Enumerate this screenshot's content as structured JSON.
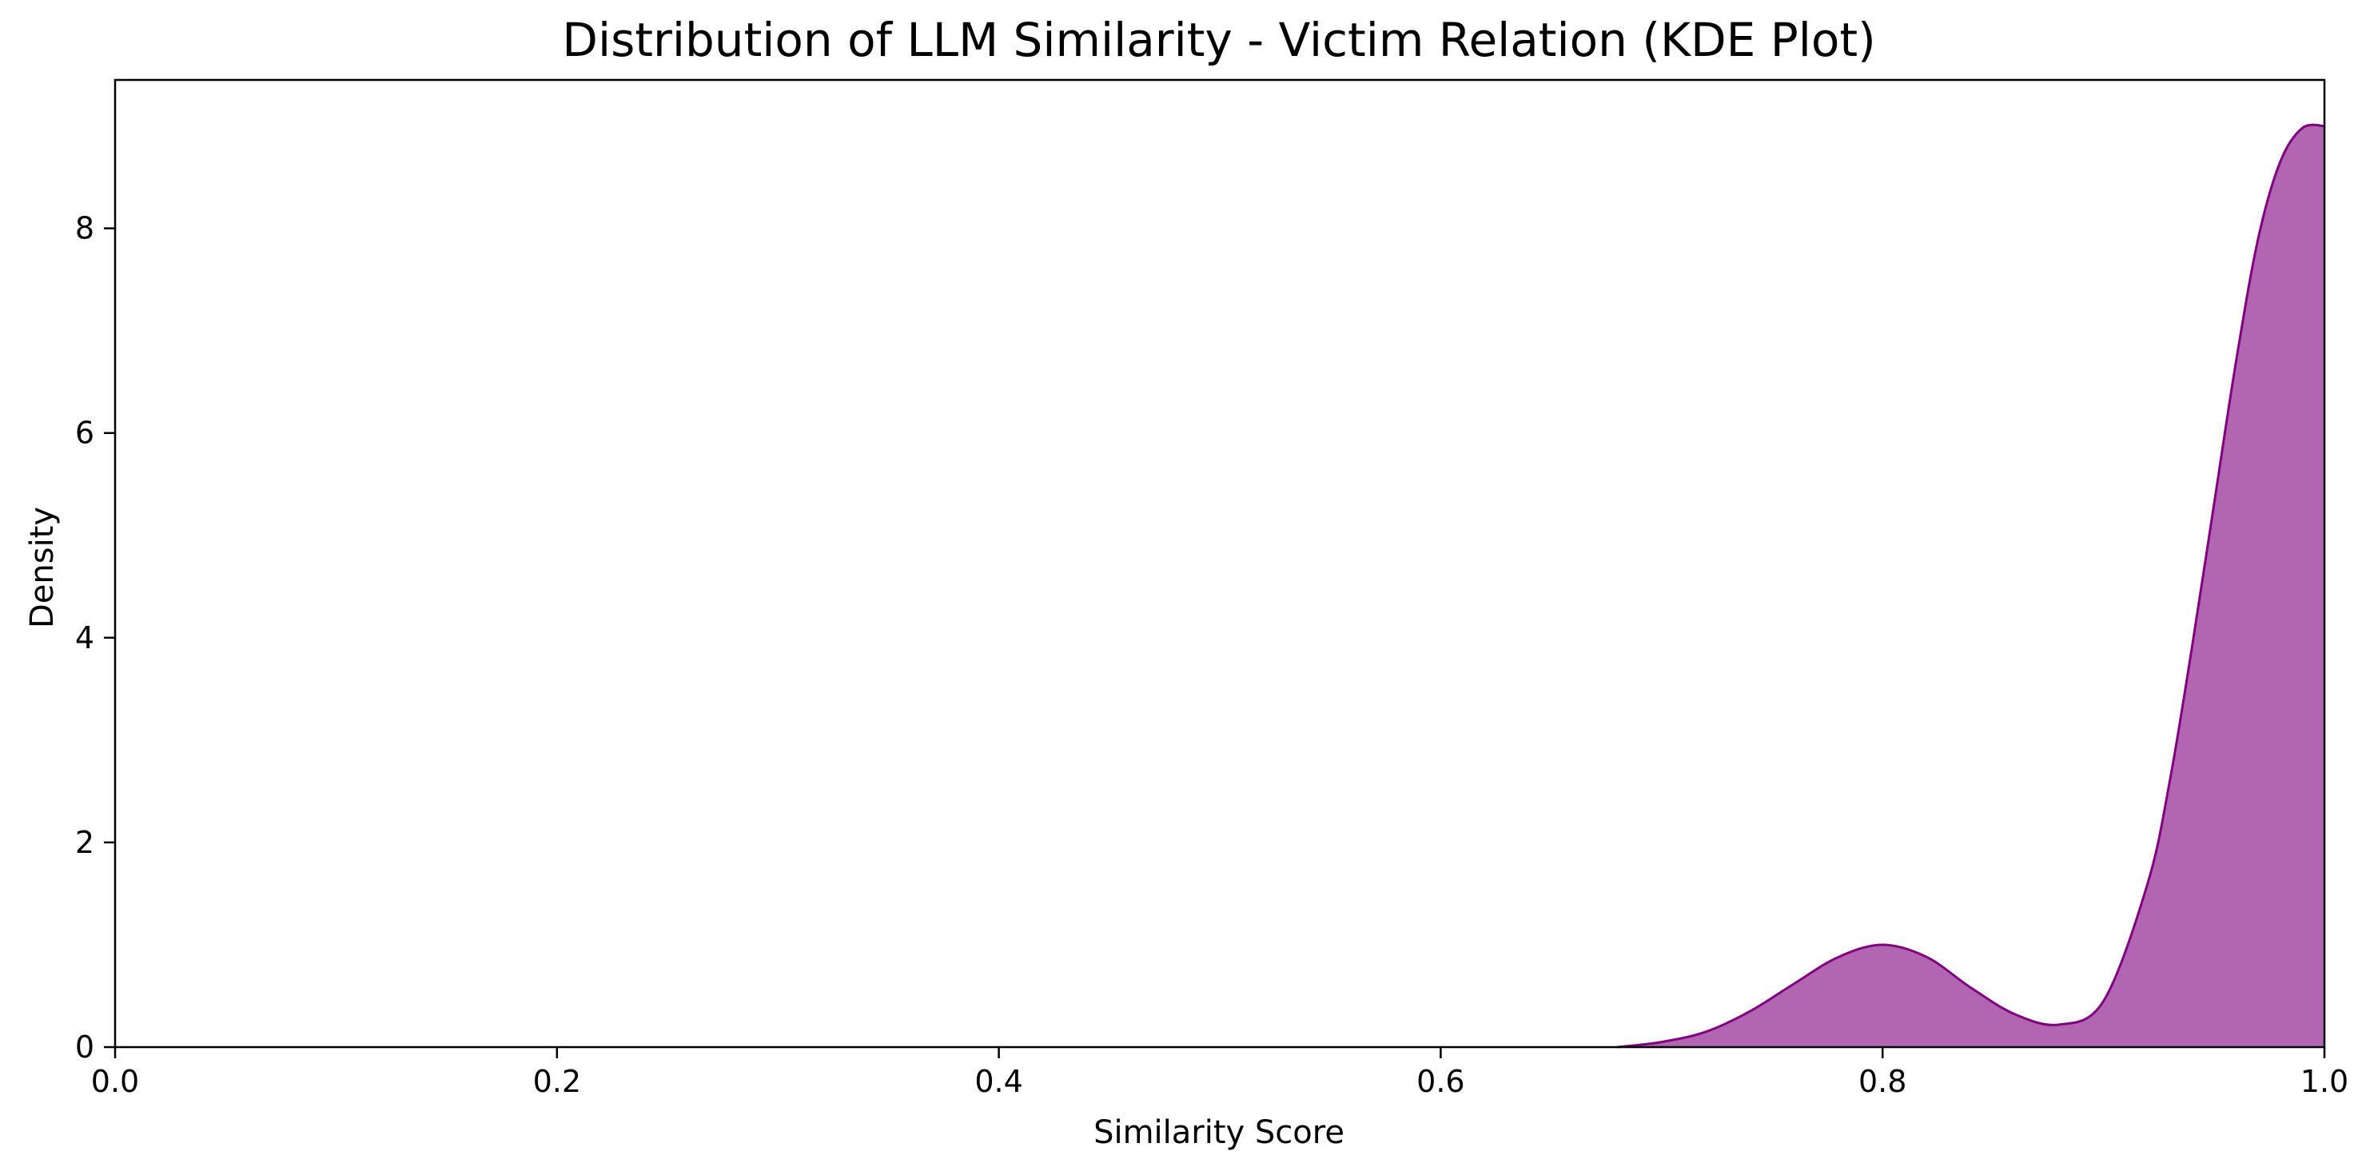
{
  "chart_data": {
    "type": "area",
    "title": "Distribution of LLM Similarity - Victim Relation (KDE Plot)",
    "xlabel": "Similarity Score",
    "ylabel": "Density",
    "xlim": [
      0.0,
      1.0
    ],
    "ylim": [
      0,
      9.45
    ],
    "xticks": [
      0.0,
      0.2,
      0.4,
      0.6,
      0.8,
      1.0
    ],
    "xtick_labels": [
      "0.0",
      "0.2",
      "0.4",
      "0.6",
      "0.8",
      "1.0"
    ],
    "yticks": [
      0,
      2,
      4,
      6,
      8
    ],
    "ytick_labels": [
      "0",
      "2",
      "4",
      "6",
      "8"
    ],
    "grid": false,
    "colors": {
      "line": "#800080",
      "fill": "#b266b2",
      "axis": "#000000"
    },
    "series": [
      {
        "x": [
          0.68,
          0.7,
          0.72,
          0.74,
          0.76,
          0.78,
          0.8,
          0.82,
          0.84,
          0.86,
          0.88,
          0.9,
          0.92,
          0.93,
          0.94,
          0.95,
          0.96,
          0.97,
          0.98,
          0.99,
          1.0
        ],
        "y": [
          0.0,
          0.05,
          0.15,
          0.35,
          0.62,
          0.88,
          1.0,
          0.88,
          0.58,
          0.32,
          0.22,
          0.45,
          1.6,
          2.6,
          3.9,
          5.3,
          6.7,
          7.9,
          8.65,
          8.98,
          9.0
        ]
      }
    ]
  }
}
